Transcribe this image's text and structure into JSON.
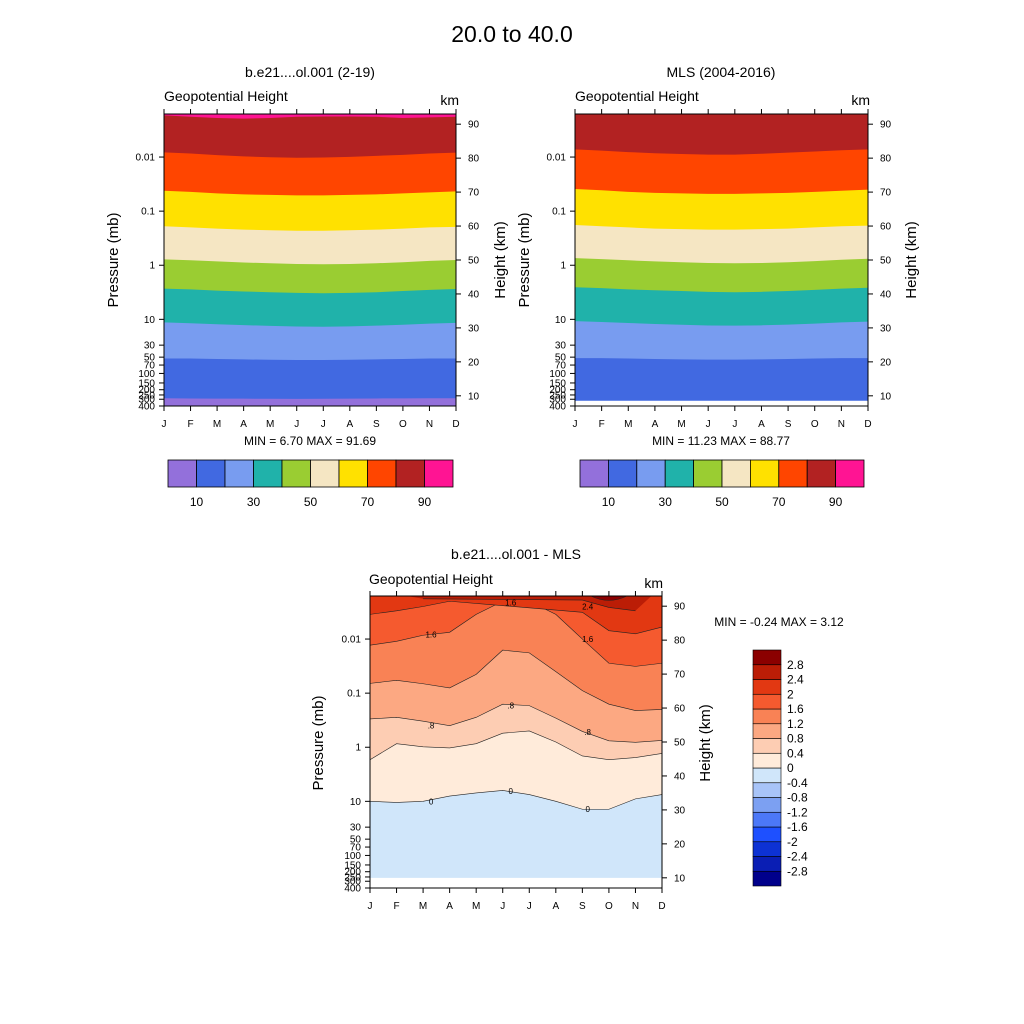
{
  "figure_title": "20.0 to  40.0",
  "months": [
    "J",
    "F",
    "M",
    "A",
    "M",
    "J",
    "J",
    "A",
    "S",
    "O",
    "N",
    "D"
  ],
  "pressure_labels": [
    "0.01",
    "0.1",
    "1",
    "10",
    "30",
    "50",
    "70",
    "100",
    "150",
    "200",
    "250",
    "300",
    "400"
  ],
  "pressure_values": [
    0.01,
    0.1,
    1,
    10,
    30,
    50,
    70,
    100,
    150,
    200,
    250,
    300,
    400
  ],
  "height_labels": [
    "90",
    "80",
    "70",
    "60",
    "50",
    "40",
    "30",
    "20",
    "10"
  ],
  "height_values": [
    90,
    80,
    70,
    60,
    50,
    40,
    30,
    20,
    10
  ],
  "colors": {
    "abs_levels": [
      "#9370DB",
      "#4169E1",
      "#789CF0",
      "#20B2AA",
      "#9ACD32",
      "#F5E6C3",
      "#FFE100",
      "#FF4500",
      "#B22222",
      "#FF1493"
    ],
    "diff_levels": [
      "#00008B",
      "#0A1EB4",
      "#0D32D4",
      "#1E50FF",
      "#4C78F8",
      "#7CA0F2",
      "#A8C4F8",
      "#D0E6FA",
      "#FFEBDA",
      "#FDCDB3",
      "#FCA882",
      "#F98255",
      "#F55A2F",
      "#E23812",
      "#BB1D06",
      "#8B0000"
    ]
  },
  "chart_data": [
    {
      "type": "contour",
      "title": "b.e21....ol.001 (2-19)",
      "left_label": "Geopotential Height",
      "right_unit": "km",
      "ylabel": "Pressure (mb)",
      "ylabel_right": "Height (km)",
      "stats": "MIN =   6.70  MAX =  91.69",
      "ylim_pressure": [
        400,
        0.0016
      ],
      "ylim_height": [
        7,
        93
      ],
      "levels": [
        10,
        20,
        30,
        40,
        50,
        60,
        70,
        80,
        90
      ],
      "level_labels": [
        "10",
        "30",
        "50",
        "70",
        "90"
      ],
      "contours": [
        {
          "level": 10,
          "pressure": [
            288,
            290,
            292,
            293,
            294,
            295,
            294,
            292,
            290,
            289,
            288,
            288
          ]
        },
        {
          "level": 20,
          "pressure": [
            53,
            53,
            54,
            55,
            56,
            56.5,
            56.5,
            56,
            55,
            54,
            53,
            53
          ]
        },
        {
          "level": 30,
          "pressure": [
            11.4,
            11.8,
            12.3,
            12.8,
            13.2,
            13.6,
            13.7,
            13.5,
            13.1,
            12.6,
            12,
            11.6
          ]
        },
        {
          "level": 40,
          "pressure": [
            2.7,
            2.8,
            2.95,
            3.05,
            3.15,
            3.25,
            3.3,
            3.25,
            3.15,
            3.0,
            2.85,
            2.75
          ]
        },
        {
          "level": 50,
          "pressure": [
            0.78,
            0.81,
            0.85,
            0.89,
            0.92,
            0.95,
            0.96,
            0.95,
            0.92,
            0.88,
            0.83,
            0.8
          ]
        },
        {
          "level": 60,
          "pressure": [
            0.19,
            0.2,
            0.21,
            0.22,
            0.225,
            0.23,
            0.23,
            0.225,
            0.22,
            0.21,
            0.2,
            0.195
          ]
        },
        {
          "level": 70,
          "pressure": [
            0.042,
            0.044,
            0.047,
            0.049,
            0.05,
            0.051,
            0.051,
            0.05,
            0.049,
            0.047,
            0.045,
            0.043
          ]
        },
        {
          "level": 80,
          "pressure": [
            0.0082,
            0.0086,
            0.0092,
            0.0097,
            0.0101,
            0.0103,
            0.0102,
            0.0099,
            0.0095,
            0.0091,
            0.0086,
            0.0083
          ]
        },
        {
          "level": 90,
          "pressure": [
            0.0017,
            0.0018,
            0.0019,
            0.00195,
            0.0019,
            0.0018,
            0.00178,
            0.00178,
            0.0018,
            0.0019,
            0.00185,
            0.0018
          ]
        }
      ],
      "bottom_blank_above_pressure": null
    },
    {
      "type": "contour",
      "title": "MLS (2004-2016)",
      "left_label": "Geopotential Height",
      "right_unit": "km",
      "ylabel": "Pressure (mb)",
      "ylabel_right": "Height (km)",
      "stats": "MIN =  11.23  MAX =  88.77",
      "ylim_pressure": [
        400,
        0.0016
      ],
      "ylim_height": [
        7,
        93
      ],
      "levels": [
        10,
        20,
        30,
        40,
        50,
        60,
        70,
        80,
        90
      ],
      "level_labels": [
        "10",
        "30",
        "50",
        "70",
        "90"
      ],
      "contours": [
        {
          "level": 20,
          "pressure": [
            52,
            52,
            53,
            54,
            55,
            55.5,
            55.5,
            55,
            54,
            53,
            52,
            52
          ]
        },
        {
          "level": 30,
          "pressure": [
            10.8,
            11.2,
            11.7,
            12.2,
            12.6,
            13,
            13.1,
            12.9,
            12.5,
            12,
            11.4,
            11
          ]
        },
        {
          "level": 40,
          "pressure": [
            2.55,
            2.65,
            2.8,
            2.9,
            3.0,
            3.1,
            3.15,
            3.1,
            3.0,
            2.85,
            2.7,
            2.6
          ]
        },
        {
          "level": 50,
          "pressure": [
            0.74,
            0.77,
            0.81,
            0.85,
            0.88,
            0.91,
            0.92,
            0.91,
            0.88,
            0.84,
            0.79,
            0.76
          ]
        },
        {
          "level": 60,
          "pressure": [
            0.18,
            0.19,
            0.2,
            0.21,
            0.215,
            0.22,
            0.22,
            0.215,
            0.21,
            0.2,
            0.19,
            0.185
          ]
        },
        {
          "level": 70,
          "pressure": [
            0.039,
            0.041,
            0.044,
            0.046,
            0.047,
            0.048,
            0.048,
            0.047,
            0.046,
            0.044,
            0.042,
            0.04
          ]
        },
        {
          "level": 80,
          "pressure": [
            0.0072,
            0.0076,
            0.0081,
            0.0085,
            0.0088,
            0.009,
            0.009,
            0.0087,
            0.0083,
            0.0079,
            0.0075,
            0.0072
          ]
        }
      ],
      "bottom_blank_above_pressure": 320
    },
    {
      "type": "contour",
      "title": "b.e21....ol.001 - MLS",
      "left_label": "Geopotential Height",
      "right_unit": "km",
      "ylabel": "Pressure (mb)",
      "ylabel_right": "Height (km)",
      "stats": "MIN =  -0.24  MAX =   3.12",
      "ylim_pressure": [
        400,
        0.0016
      ],
      "ylim_height": [
        7,
        93
      ],
      "levels": [
        -2.8,
        -2.4,
        -2,
        -1.6,
        -1.2,
        -0.8,
        -0.4,
        0,
        0.4,
        0.8,
        1.2,
        1.6,
        2,
        2.4,
        2.8
      ],
      "level_labels": [
        "-2.8",
        "-2.4",
        "-2",
        "-1.6",
        "-1.2",
        "-0.8",
        "-0.4",
        "0",
        "0.4",
        "0.8",
        "1.2",
        "1.6",
        "2",
        "2.4",
        "2.8"
      ],
      "contour_labels": [
        {
          "text": "0",
          "month": 2.3,
          "pressure": 10
        },
        {
          "text": "0",
          "month": 5.3,
          "pressure": 6.4
        },
        {
          "text": "0",
          "month": 8.2,
          "pressure": 14
        },
        {
          "text": ".8",
          "month": 2.3,
          "pressure": 0.4
        },
        {
          "text": ".8",
          "month": 5.3,
          "pressure": 0.17
        },
        {
          "text": ".8",
          "month": 8.2,
          "pressure": 0.52
        },
        {
          "text": "1.6",
          "month": 2.3,
          "pressure": 0.0082
        },
        {
          "text": "1.6",
          "month": 5.3,
          "pressure": 0.0021
        },
        {
          "text": "1.6",
          "month": 8.2,
          "pressure": 0.01
        },
        {
          "text": "2.4",
          "month": 8.2,
          "pressure": 0.0025
        }
      ],
      "contours": [
        {
          "level": 0,
          "pressure": [
            10,
            10.5,
            10,
            8,
            7,
            6.3,
            7.5,
            10,
            14,
            14,
            9,
            7.5
          ]
        },
        {
          "level": 0.4,
          "pressure": [
            1.7,
            0.86,
            0.98,
            1.03,
            0.86,
            0.55,
            0.5,
            0.8,
            1.45,
            1.7,
            1.55,
            1.3
          ]
        },
        {
          "level": 0.8,
          "pressure": [
            0.3,
            0.28,
            0.33,
            0.4,
            0.28,
            0.16,
            0.17,
            0.29,
            0.51,
            0.76,
            0.81,
            0.75
          ]
        },
        {
          "level": 1.2,
          "pressure": [
            0.066,
            0.058,
            0.067,
            0.08,
            0.045,
            0.016,
            0.018,
            0.04,
            0.09,
            0.16,
            0.21,
            0.2
          ]
        },
        {
          "level": 1.6,
          "pressure": [
            0.013,
            0.011,
            0.0085,
            0.0075,
            0.0035,
            0.002,
            0.002,
            0.0035,
            0.01,
            0.028,
            0.032,
            0.028
          ]
        },
        {
          "level": 2.0,
          "pressure": [
            0.0035,
            0.003,
            0.0025,
            0.002,
            null,
            null,
            null,
            null,
            0.0032,
            0.007,
            0.008,
            0.006
          ]
        },
        {
          "level": 2.4,
          "pressure": [
            null,
            null,
            0.0018,
            null,
            null,
            null,
            null,
            null,
            0.0019,
            0.0026,
            0.003,
            null
          ]
        },
        {
          "level": 2.8,
          "pressure": [
            null,
            null,
            null,
            null,
            null,
            null,
            null,
            null,
            null,
            0.0018,
            null,
            null
          ]
        }
      ],
      "bottom_blank_above_pressure": 260
    }
  ]
}
